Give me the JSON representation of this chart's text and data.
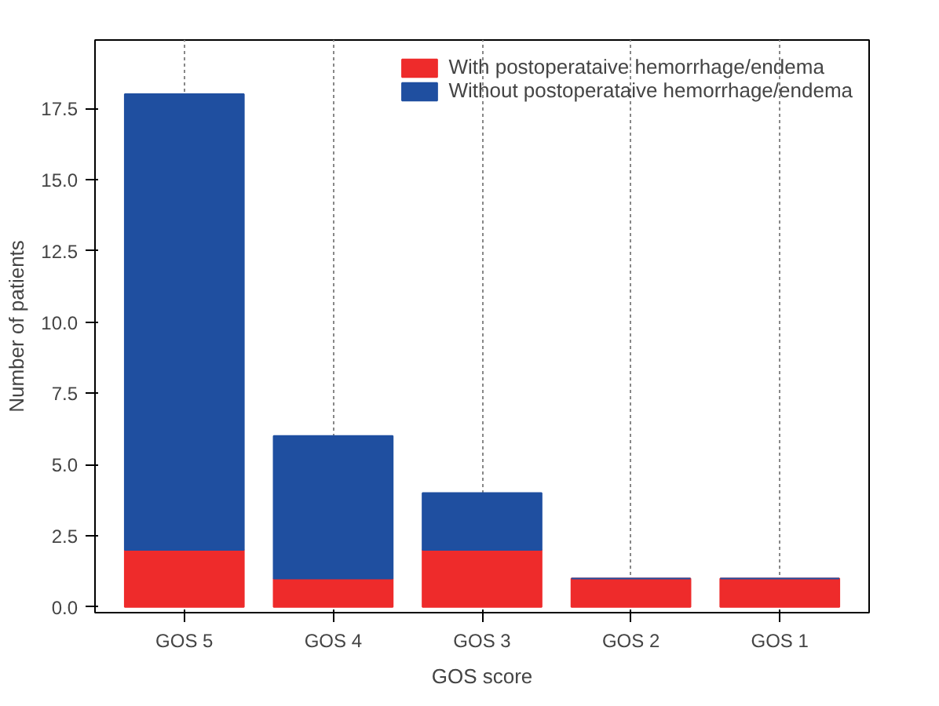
{
  "chart_data": {
    "type": "bar",
    "stacked": true,
    "xlabel": "GOS score",
    "ylabel": "Number of patients",
    "categories": [
      "GOS 5",
      "GOS 4",
      "GOS 3",
      "GOS 2",
      "GOS 1"
    ],
    "series": [
      {
        "name": "With postoperataive hemorrhage/endema",
        "color": "#ee2b2b",
        "values": [
          2,
          1,
          2,
          1,
          1
        ]
      },
      {
        "name": "Without postoperataive hemorrhage/endema",
        "color": "#1f4fa0",
        "values": [
          16,
          5,
          2,
          0,
          0
        ]
      }
    ],
    "ylim": [
      -0.2,
      19.9
    ],
    "yticks": [
      {
        "value": 0,
        "label": "0.0"
      },
      {
        "value": 2.5,
        "label": "2.5"
      },
      {
        "value": 5,
        "label": "5.0"
      },
      {
        "value": 7.5,
        "label": "7.5"
      },
      {
        "value": 10,
        "label": "10.0"
      },
      {
        "value": 12.5,
        "label": "12.5"
      },
      {
        "value": 15,
        "label": "15.0"
      },
      {
        "value": 17.5,
        "label": "17.5"
      }
    ],
    "grid": "x",
    "legend": "top right"
  }
}
